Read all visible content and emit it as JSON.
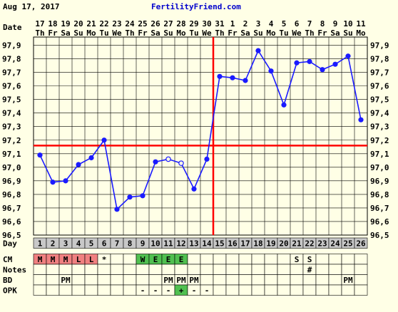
{
  "header": {
    "date": "Aug 17, 2017",
    "site": "FertilityFriend.com"
  },
  "labels": {
    "date_row": "Date",
    "day_row": "Day",
    "cm_row": "CM",
    "notes_row": "Notes",
    "bd_row": "BD",
    "opk_row": "OPK"
  },
  "colors": {
    "background": "#ffffe6",
    "line": "#1a1aff",
    "coverline": "#ff0000",
    "ovulation_line": "#ff0000",
    "day_row_bg": "#c8c8c8",
    "cm_menses": "#f08080",
    "cm_egg_white": "#50c050",
    "site_text": "#0000cc"
  },
  "chart_data": {
    "type": "line",
    "title": "",
    "y_unit": "°F",
    "ylim": [
      96.5,
      98.0
    ],
    "y_ticks": [
      "96,5",
      "96,6",
      "96,7",
      "96,8",
      "96,9",
      "97,0",
      "97,1",
      "97,2",
      "97,3",
      "97,4",
      "97,5",
      "97,6",
      "97,7",
      "97,8",
      "97,9"
    ],
    "dates": [
      "17",
      "18",
      "19",
      "20",
      "21",
      "22",
      "23",
      "24",
      "25",
      "26",
      "27",
      "28",
      "29",
      "30",
      "31",
      "1",
      "2",
      "3",
      "4",
      "5",
      "6",
      "7",
      "8",
      "9",
      "10",
      "11"
    ],
    "weekdays": [
      "Th",
      "Fr",
      "Sa",
      "Su",
      "Mo",
      "Tu",
      "We",
      "Th",
      "Fr",
      "Sa",
      "Su",
      "Mo",
      "Tu",
      "We",
      "Th",
      "Fr",
      "Sa",
      "Su",
      "Mo",
      "Tu",
      "We",
      "Th",
      "Fr",
      "Sa",
      "Su",
      "Mo"
    ],
    "days": [
      1,
      2,
      3,
      4,
      5,
      6,
      7,
      8,
      9,
      10,
      11,
      12,
      13,
      14,
      15,
      16,
      17,
      18,
      19,
      20,
      21,
      22,
      23,
      24,
      25,
      26
    ],
    "temps": [
      97.09,
      96.89,
      96.9,
      97.02,
      97.07,
      97.2,
      96.69,
      96.78,
      96.79,
      97.04,
      97.06,
      97.03,
      96.84,
      97.06,
      97.67,
      97.66,
      97.64,
      97.86,
      97.71,
      97.46,
      97.77,
      97.78,
      97.72,
      97.76,
      97.82,
      97.35
    ],
    "open_points": [
      11,
      12
    ],
    "coverline": 97.16,
    "ovulation_day": 14,
    "cm": [
      "M",
      "M",
      "M",
      "L",
      "L",
      "*",
      "",
      "",
      "W",
      "E",
      "E",
      "E",
      "",
      "",
      "",
      "",
      "",
      "",
      "",
      "",
      "S",
      "S",
      "",
      "",
      "",
      ""
    ],
    "notes": [
      "",
      "",
      "",
      "",
      "",
      "",
      "",
      "",
      "",
      "",
      "",
      "",
      "",
      "",
      "",
      "",
      "",
      "",
      "",
      "",
      "",
      "#",
      "",
      "",
      "",
      ""
    ],
    "bd": [
      "",
      "",
      "PM",
      "",
      "",
      "",
      "",
      "",
      "",
      "",
      "PM",
      "PM",
      "PM",
      "",
      "",
      "",
      "",
      "",
      "",
      "",
      "",
      "",
      "",
      "",
      "PM",
      ""
    ],
    "opk": [
      "",
      "",
      "",
      "",
      "",
      "",
      "",
      "",
      "-",
      "-",
      "-",
      "+",
      "-",
      "-",
      "",
      "",
      "",
      "",
      "",
      "",
      "",
      "",
      "",
      "",
      "",
      ""
    ]
  }
}
